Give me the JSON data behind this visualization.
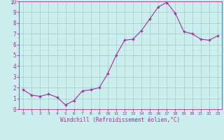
{
  "x": [
    0,
    1,
    2,
    3,
    4,
    5,
    6,
    7,
    8,
    9,
    10,
    11,
    12,
    13,
    14,
    15,
    16,
    17,
    18,
    19,
    20,
    21,
    22,
    23
  ],
  "y": [
    1.8,
    1.3,
    1.2,
    1.4,
    1.1,
    0.4,
    0.8,
    1.7,
    1.8,
    2.0,
    3.3,
    5.0,
    6.4,
    6.5,
    7.3,
    8.4,
    9.5,
    9.9,
    8.9,
    7.2,
    7.0,
    6.5,
    6.4,
    6.8
  ],
  "line_color": "#993399",
  "marker": "D",
  "marker_size": 2,
  "bg_color": "#cceeee",
  "grid_color": "#aacccc",
  "xlabel": "Windchill (Refroidissement éolien,°C)",
  "xlabel_color": "#993399",
  "tick_color": "#993399",
  "xlim": [
    -0.5,
    23.5
  ],
  "ylim": [
    0,
    10
  ],
  "yticks": [
    0,
    1,
    2,
    3,
    4,
    5,
    6,
    7,
    8,
    9,
    10
  ],
  "xticks": [
    0,
    1,
    2,
    3,
    4,
    5,
    6,
    7,
    8,
    9,
    10,
    11,
    12,
    13,
    14,
    15,
    16,
    17,
    18,
    19,
    20,
    21,
    22,
    23
  ],
  "xtick_labels": [
    "0",
    "1",
    "2",
    "3",
    "4",
    "5",
    "6",
    "7",
    "8",
    "9",
    "10",
    "11",
    "12",
    "13",
    "14",
    "15",
    "16",
    "17",
    "18",
    "19",
    "20",
    "21",
    "22",
    "23"
  ],
  "ytick_labels": [
    "0",
    "1",
    "2",
    "3",
    "4",
    "5",
    "6",
    "7",
    "8",
    "9",
    "10"
  ]
}
